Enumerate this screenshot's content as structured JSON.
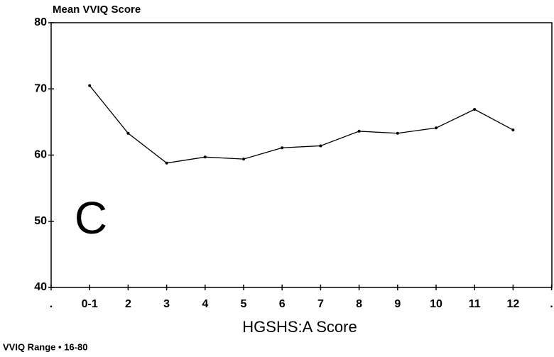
{
  "chart_data": {
    "type": "line",
    "title": "Mean VVIQ Score",
    "x_label": "HGSHS:A Score",
    "annotation": "C",
    "footnote": "VVIQ Range • 16-80",
    "categories": [
      ".",
      "0-1",
      "2",
      "3",
      "4",
      "5",
      "6",
      "7",
      "8",
      "9",
      "10",
      "11",
      "12",
      "."
    ],
    "values": [
      null,
      70.5,
      63.3,
      58.8,
      59.7,
      59.4,
      61.1,
      61.4,
      63.6,
      63.3,
      64.1,
      66.9,
      63.8,
      null
    ],
    "color": "#000000",
    "ylim": [
      40,
      80
    ],
    "yticks": [
      40,
      50,
      60,
      70,
      80
    ],
    "grid": false
  }
}
